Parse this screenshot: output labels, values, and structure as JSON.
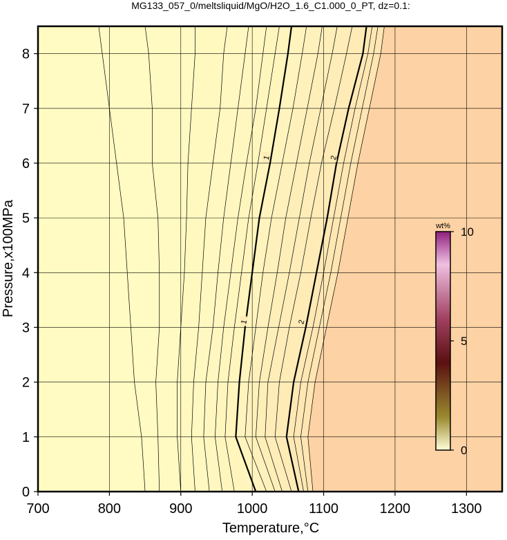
{
  "chart_data": {
    "type": "contour",
    "title": "MG133_057_0/meltsliquid/MgO/H2O_1.6_C1.000_0_PT, dz=0.1:",
    "x_label": "Temperature,°C",
    "y_label": "Pressure,x100MPa",
    "xlim": [
      700,
      1350
    ],
    "ylim": [
      0,
      8.5
    ],
    "xticks": [
      700,
      800,
      900,
      1000,
      1100,
      1200,
      1300
    ],
    "yticks": [
      0,
      1,
      2,
      3,
      4,
      5,
      6,
      7,
      8
    ],
    "grid": true,
    "fill_low": "#fffbc2",
    "fill_high": "#fdd2a4",
    "y": [
      0,
      1,
      2,
      3,
      4,
      5,
      6,
      7,
      8,
      8.5
    ],
    "contours": [
      {
        "level": 0.3,
        "x": [
          850,
          845,
          835,
          830,
          825,
          820,
          810,
          800,
          790,
          785
        ]
      },
      {
        "level": 0.4,
        "x": [
          870,
          868,
          865,
          870,
          870,
          868,
          860,
          860,
          855,
          850
        ]
      },
      {
        "level": 0.5,
        "x": [
          900,
          895,
          895,
          900,
          905,
          908,
          910,
          915,
          920,
          920
        ]
      },
      {
        "level": 0.6,
        "x": [
          920,
          915,
          918,
          925,
          930,
          935,
          945,
          955,
          960,
          965
        ]
      },
      {
        "level": 0.7,
        "x": [
          940,
          932,
          935,
          945,
          952,
          960,
          970,
          980,
          990,
          995
        ]
      },
      {
        "level": 0.8,
        "x": [
          958,
          948,
          952,
          960,
          970,
          980,
          992,
          1005,
          1015,
          1020
        ]
      },
      {
        "level": 0.9,
        "x": [
          975,
          962,
          966,
          975,
          985,
          995,
          1008,
          1020,
          1032,
          1038
        ]
      },
      {
        "level": 1,
        "labeled": true,
        "x": [
          1005,
          977,
          982,
          990,
          1000,
          1010,
          1025,
          1038,
          1050,
          1055
        ]
      },
      {
        "level": 1.2,
        "x": [
          1020,
          990,
          995,
          1005,
          1015,
          1027,
          1042,
          1057,
          1070,
          1076
        ]
      },
      {
        "level": 1.4,
        "x": [
          1032,
          1005,
          1010,
          1022,
          1035,
          1047,
          1062,
          1077,
          1092,
          1098
        ]
      },
      {
        "level": 1.6,
        "x": [
          1042,
          1018,
          1022,
          1037,
          1052,
          1066,
          1080,
          1096,
          1112,
          1119
        ]
      },
      {
        "level": 1.8,
        "x": [
          1055,
          1032,
          1038,
          1052,
          1068,
          1082,
          1097,
          1115,
          1132,
          1140
        ]
      },
      {
        "level": 2,
        "labeled": true,
        "x": [
          1065,
          1048,
          1058,
          1075,
          1090,
          1105,
          1118,
          1135,
          1155,
          1160
        ]
      },
      {
        "level": 2.2,
        "x": [
          1072,
          1058,
          1068,
          1085,
          1100,
          1114,
          1128,
          1144,
          1162,
          1168
        ]
      },
      {
        "level": 2.4,
        "x": [
          1078,
          1068,
          1078,
          1094,
          1110,
          1124,
          1138,
          1154,
          1170,
          1176
        ]
      },
      {
        "level": 2.6,
        "x": [
          1085,
          1078,
          1088,
          1104,
          1120,
          1134,
          1148,
          1164,
          1180,
          1185
        ]
      }
    ],
    "colorbar": {
      "label": "wt%",
      "lim": [
        0,
        10
      ],
      "ticks": [
        0,
        5,
        10
      ],
      "stops": [
        0,
        1.5,
        4,
        6,
        8.5,
        10
      ],
      "colors": [
        "#ffffd8",
        "#9a8a30",
        "#5a1010",
        "#a04060",
        "#f0c0e0",
        "#902080"
      ]
    }
  }
}
